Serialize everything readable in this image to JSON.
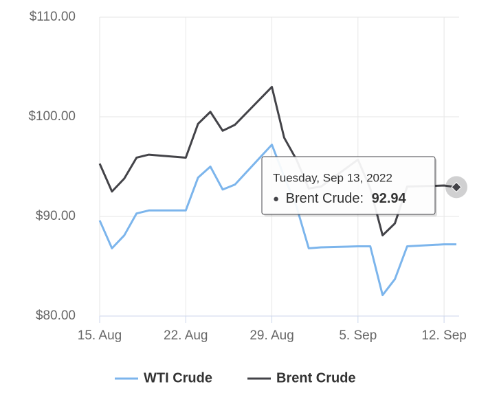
{
  "chart_data": {
    "type": "line",
    "x": [
      "2022-08-15",
      "2022-08-16",
      "2022-08-17",
      "2022-08-18",
      "2022-08-19",
      "2022-08-22",
      "2022-08-23",
      "2022-08-24",
      "2022-08-25",
      "2022-08-26",
      "2022-08-29",
      "2022-08-30",
      "2022-08-31",
      "2022-09-01",
      "2022-09-02",
      "2022-09-05",
      "2022-09-06",
      "2022-09-07",
      "2022-09-08",
      "2022-09-09",
      "2022-09-12",
      "2022-09-13"
    ],
    "series": [
      {
        "name": "WTI Crude",
        "color": "#7cb5ec",
        "values": [
          89.6,
          86.8,
          88.1,
          90.3,
          90.6,
          90.6,
          93.9,
          95.0,
          92.7,
          93.2,
          97.2,
          94.0,
          91.0,
          86.8,
          86.9,
          87.0,
          87.0,
          82.1,
          83.7,
          87.0,
          87.2,
          87.2
        ]
      },
      {
        "name": "Brent Crude",
        "color": "#434348",
        "values": [
          95.3,
          92.5,
          93.8,
          95.9,
          96.2,
          95.9,
          99.3,
          100.5,
          98.6,
          99.2,
          103.0,
          97.9,
          95.7,
          92.8,
          93.0,
          95.7,
          92.8,
          88.1,
          89.3,
          93.0,
          93.1,
          92.94
        ]
      }
    ],
    "xlim": [
      "2022-08-15",
      "2022-09-13"
    ],
    "xticks": [
      {
        "value": "2022-08-15",
        "label": "15. Aug"
      },
      {
        "value": "2022-08-22",
        "label": "22. Aug"
      },
      {
        "value": "2022-08-29",
        "label": "29. Aug"
      },
      {
        "value": "2022-09-05",
        "label": "5. Sep"
      },
      {
        "value": "2022-09-12",
        "label": "12. Sep"
      }
    ],
    "ylim": [
      80,
      110
    ],
    "yticks": [
      {
        "value": 80,
        "label": "$80.00"
      },
      {
        "value": 90,
        "label": "$90.00"
      },
      {
        "value": 100,
        "label": "$100.00"
      },
      {
        "value": 110,
        "label": "$110.00"
      }
    ],
    "grid": true,
    "tooltip": {
      "header": "Tuesday, Sep 13, 2022",
      "label": "Brent Crude:"
    }
  }
}
